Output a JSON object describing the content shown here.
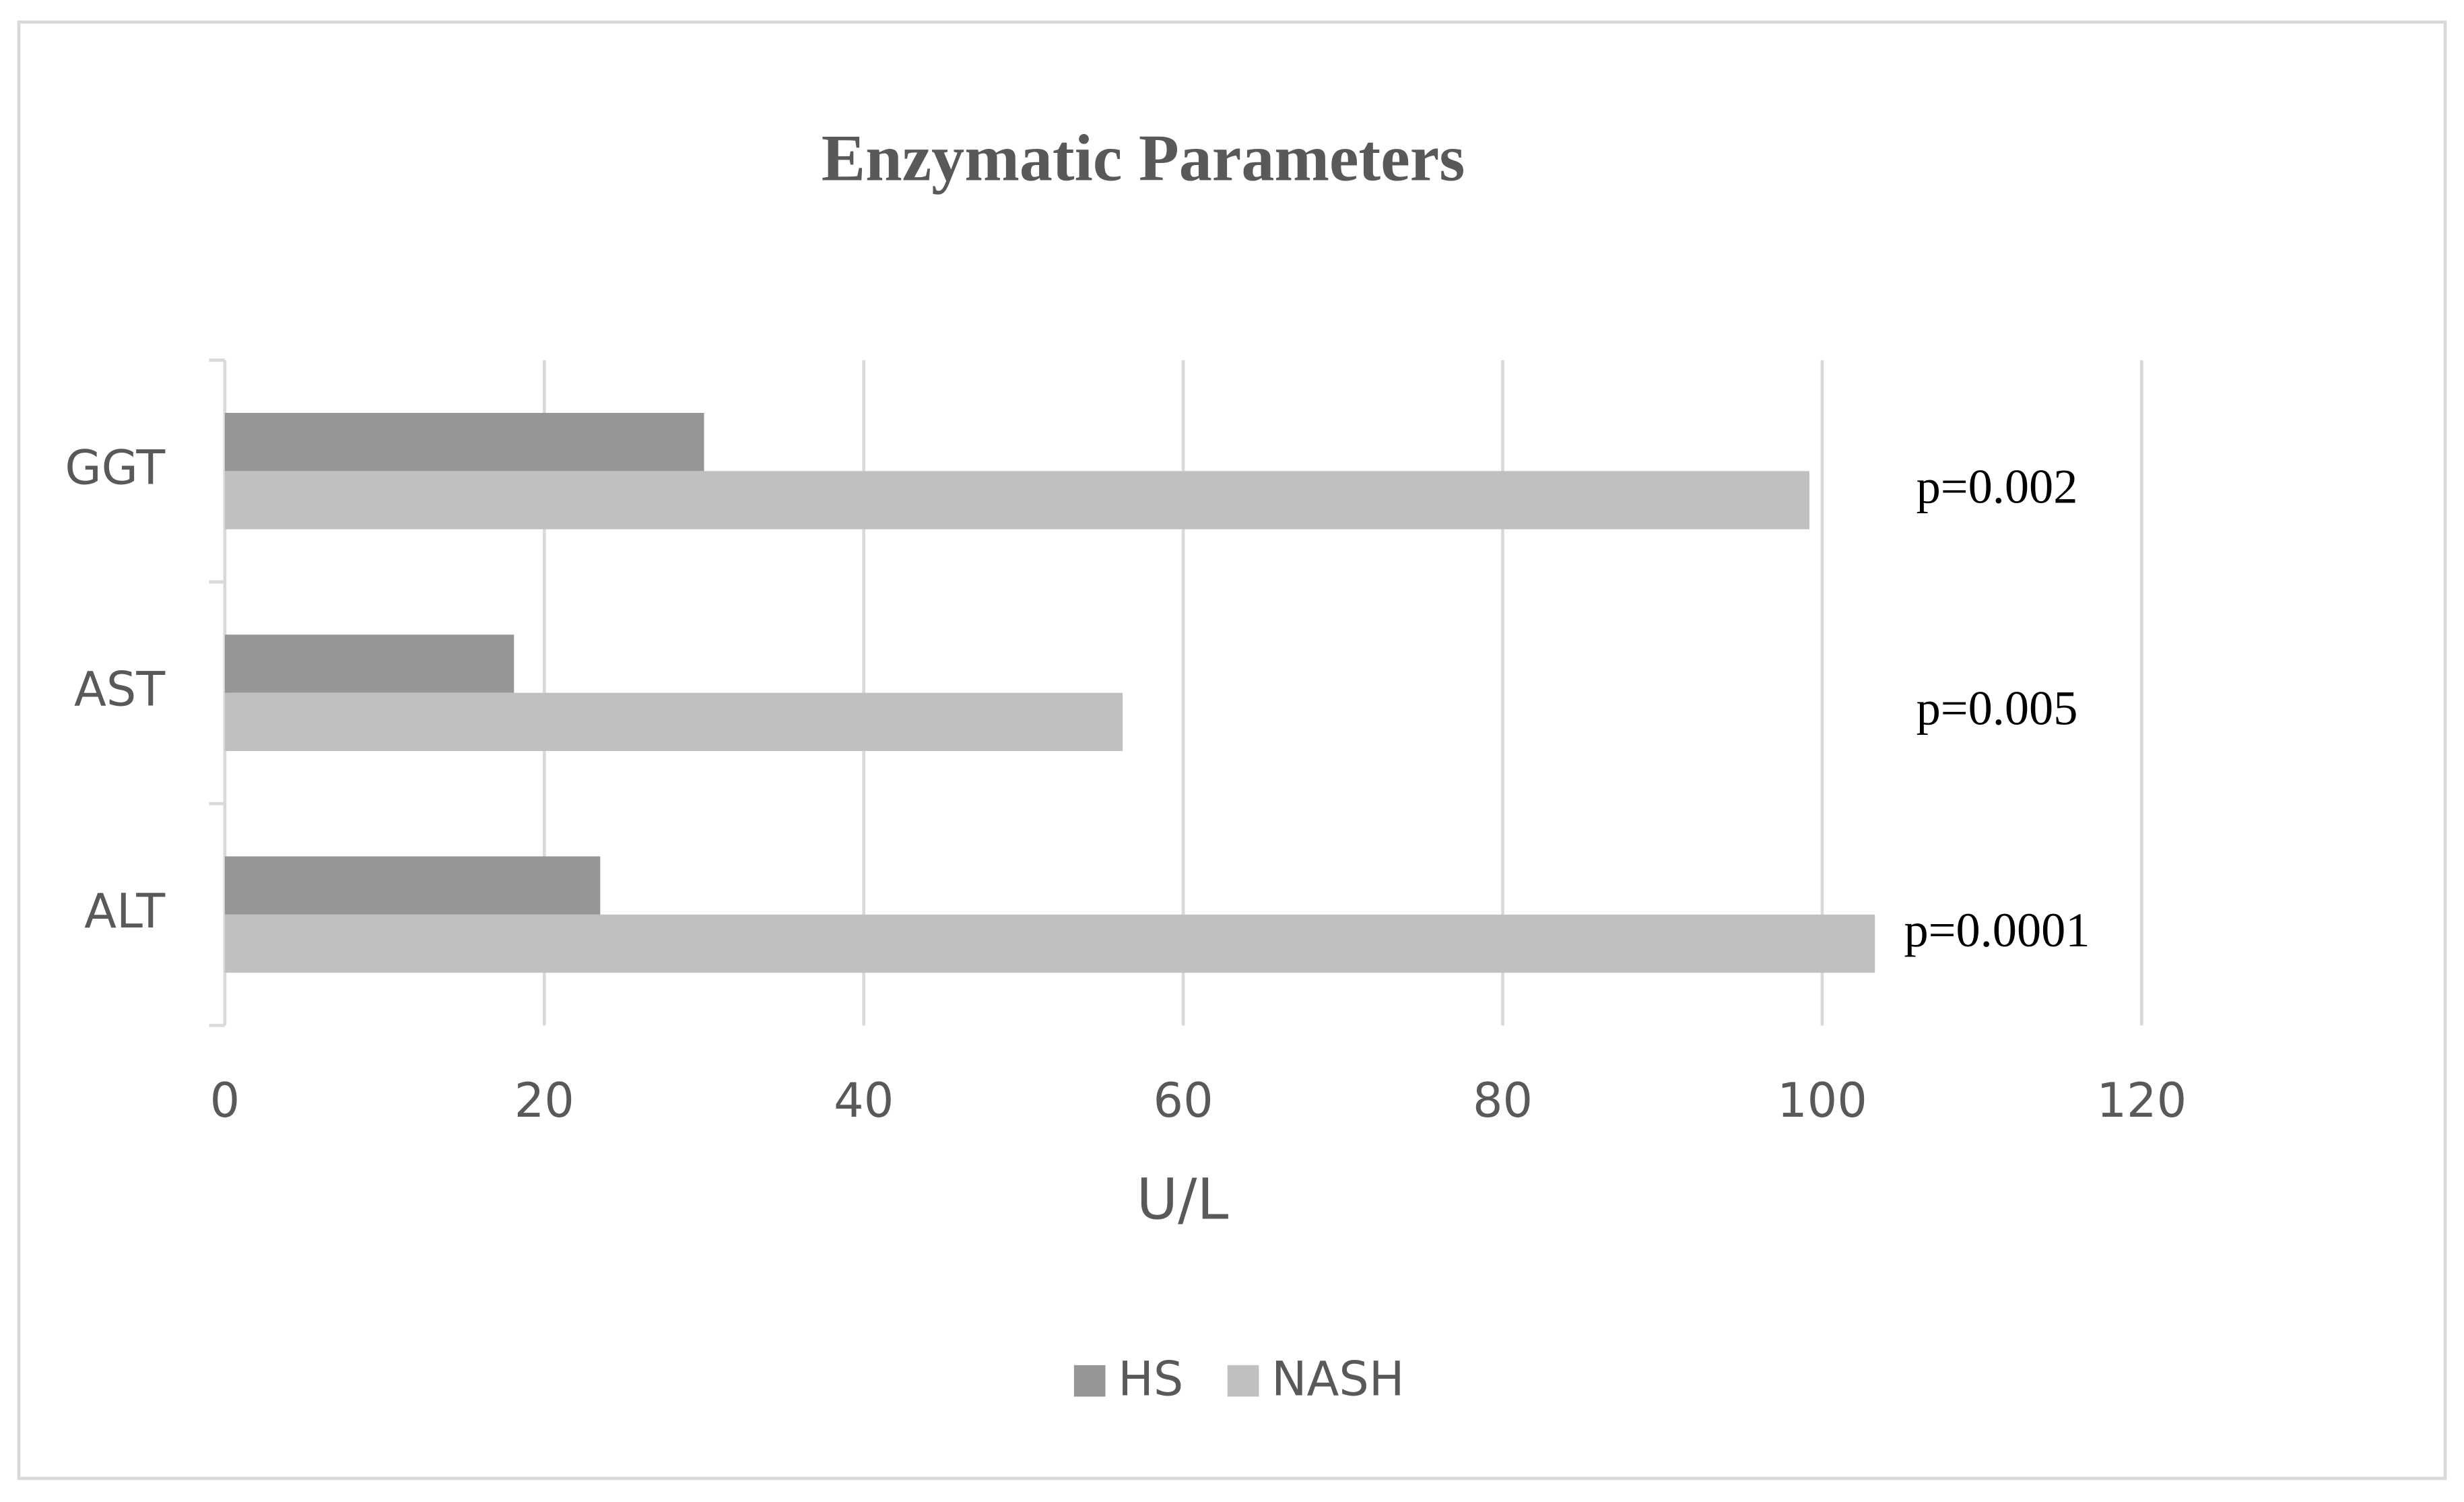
{
  "chart_data": {
    "type": "bar",
    "orientation": "horizontal",
    "title": "Enzymatic Parameters",
    "categories": [
      "ALT",
      "AST",
      "GGT"
    ],
    "series": [
      {
        "name": "HS",
        "color": "#969696",
        "values": [
          23.5,
          18.1,
          30.0
        ]
      },
      {
        "name": "NASH",
        "color": "#c0c0c0",
        "values": [
          103.3,
          56.2,
          99.2
        ]
      }
    ],
    "annotations": [
      "p=0.0001",
      "p=0.005",
      "p=0.002"
    ],
    "xlabel": "U/L",
    "xlim": [
      0,
      120
    ],
    "xticks": [
      0,
      20,
      40,
      60,
      80,
      100,
      120
    ],
    "grid": true,
    "legend": "bottom"
  }
}
